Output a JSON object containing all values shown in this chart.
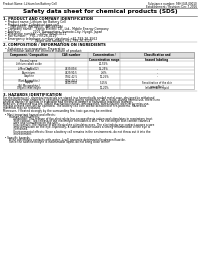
{
  "title": "Safety data sheet for chemical products (SDS)",
  "header_left": "Product Name: Lithium Ion Battery Cell",
  "header_right_line1": "Substance number: 99H-045-00010",
  "header_right_line2": "Establishment / Revision: Dec.7.2016",
  "section1_title": "1. PRODUCT AND COMPANY IDENTIFICATION",
  "section1_lines": [
    "  • Product name: Lithium Ion Battery Cell",
    "  • Product code: Cylindrical type cell",
    "       (INR18650, INR18650, INR18650A)",
    "  • Company name:   Sanyo Electric Co., Ltd., Mobile Energy Company",
    "  • Address:            2201  Kannonjima, Sumoto-City, Hyogo, Japan",
    "  • Telephone number:   +81-799-26-4111",
    "  • Fax number:   +81-799-26-4129",
    "  • Emergency telephone number (daytime) +81-799-26-3562",
    "                                [Night and holiday] +81-799-26-3129"
  ],
  "section2_title": "2. COMPOSITION / INFORMATION ON INGREDIENTS",
  "section2_intro": "  • Substance or preparation: Preparation",
  "section2_sub": "    Information about the chemical nature of product:",
  "table_headers": [
    "Component / Composition",
    "CAS number",
    "Concentration /\nConcentration range",
    "Classification and\nhazard labeling"
  ],
  "table_col0": [
    "Several name",
    "Lithium cobalt oxide\n(LiMnxCoyNizO2)",
    "Iron",
    "Aluminium",
    "Graphite\n(Part A graphite-)\n(All Mo graphite-)",
    "Copper",
    "Organic electrolyte"
  ],
  "table_col1": [
    "",
    "",
    "7439-89-6",
    "7429-90-5",
    "7782-42-5\n7782-44-2",
    "7440-50-8",
    ""
  ],
  "table_col2": [
    "",
    "20-55%",
    "15-25%",
    "2-6%",
    "10-25%",
    "5-15%",
    "10-20%"
  ],
  "table_col3": [
    "",
    "",
    "-",
    "-",
    "-",
    "Sensitization of the skin\ngroup No.2",
    "Inflammable liquid"
  ],
  "section3_title": "3. HAZARDS IDENTIFICATION",
  "section3_body": [
    "For the battery cell, chemical materials are stored in a hermetically sealed metal case, designed to withstand",
    "temperatures from ambient to operating conditions during normal use. As a result, during normal use, there is no",
    "physical danger of ignition or aspiration and thermical danger of hazardous materials leakage.",
    "However, if exposed to a fire, added mechanical shocks, decomposed, wired electric wires or by miss-use,",
    "the gas release vent will be operated. The battery cell core will be breached of fire-patterns. Hazardous",
    "materials may be released.",
    "Moreover, if heated strongly by the surrounding fire, toxic gas may be emitted.",
    "",
    "  • Most important hazard and effects:",
    "       Human health effects:",
    "            Inhalation: The release of the electrolyte has an anesthesia action and stimulates in respiratory tract.",
    "            Skin contact: The release of the electrolyte stimulates a skin. The electrolyte skin contact causes a",
    "            sore and stimulation on the skin.",
    "            Eye contact: The release of the electrolyte stimulates eyes. The electrolyte eye contact causes a sore",
    "            and stimulation on the eye. Especially, a substance that causes a strong inflammation of the eye is",
    "            contained.",
    "            Environmental effects: Since a battery cell remains in the environment, do not throw out it into the",
    "            environment.",
    "",
    "  • Specific hazards:",
    "       If the electrolyte contacts with water, it will generate detrimental hydrogen fluoride.",
    "       Since the said electrolyte is inflammable liquid, do not bring close to fire."
  ],
  "bg_color": "#ffffff",
  "text_color": "#000000",
  "table_border_color": "#999999",
  "title_fontsize": 4.2,
  "body_fontsize": 2.2,
  "header_fontsize": 2.0,
  "section_fontsize": 2.6
}
